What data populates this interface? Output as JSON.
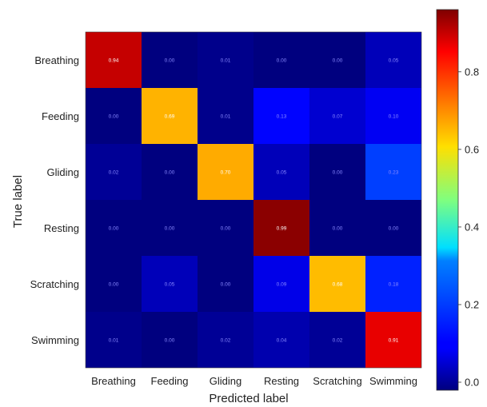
{
  "chart_data": {
    "type": "heatmap",
    "title": "",
    "xlabel": "Predicted label",
    "ylabel": "True label",
    "categories": [
      "Breathing",
      "Feeding",
      "Gliding",
      "Resting",
      "Scratching",
      "Swimming"
    ],
    "rows": [
      "Breathing",
      "Feeding",
      "Gliding",
      "Resting",
      "Scratching",
      "Swimming"
    ],
    "values": [
      [
        0.94,
        0.0,
        0.01,
        0.0,
        0.0,
        0.05
      ],
      [
        0.0,
        0.69,
        0.01,
        0.13,
        0.07,
        0.1
      ],
      [
        0.02,
        0.0,
        0.7,
        0.05,
        0.0,
        0.23
      ],
      [
        0.0,
        0.0,
        0.0,
        0.99,
        0.0,
        0.0
      ],
      [
        0.0,
        0.05,
        0.0,
        0.09,
        0.68,
        0.18
      ],
      [
        0.01,
        0.0,
        0.02,
        0.04,
        0.02,
        0.91
      ]
    ],
    "cell_labels": [
      [
        "0.94",
        "0.00",
        "0.01",
        "0.00",
        "0.00",
        "0.05"
      ],
      [
        "0.00",
        "0.69",
        "0.01",
        "0.13",
        "0.07",
        "0.10"
      ],
      [
        "0.02",
        "0.00",
        "0.70",
        "0.05",
        "0.00",
        "0.23"
      ],
      [
        "0.00",
        "0.00",
        "0.00",
        "0.99",
        "0.00",
        "0.00"
      ],
      [
        "0.00",
        "0.05",
        "0.00",
        "0.09",
        "0.68",
        "0.18"
      ],
      [
        "0.01",
        "0.00",
        "0.02",
        "0.04",
        "0.02",
        "0.91"
      ]
    ],
    "colormap": "jet",
    "value_range": [
      0,
      1
    ],
    "colorbar": {
      "ticks": [
        0.0,
        0.2,
        0.4,
        0.6,
        0.8
      ],
      "tick_labels": [
        "0.0",
        "0.2",
        "0.4",
        "0.6",
        "0.8"
      ],
      "placement": "right"
    },
    "grid": false
  }
}
